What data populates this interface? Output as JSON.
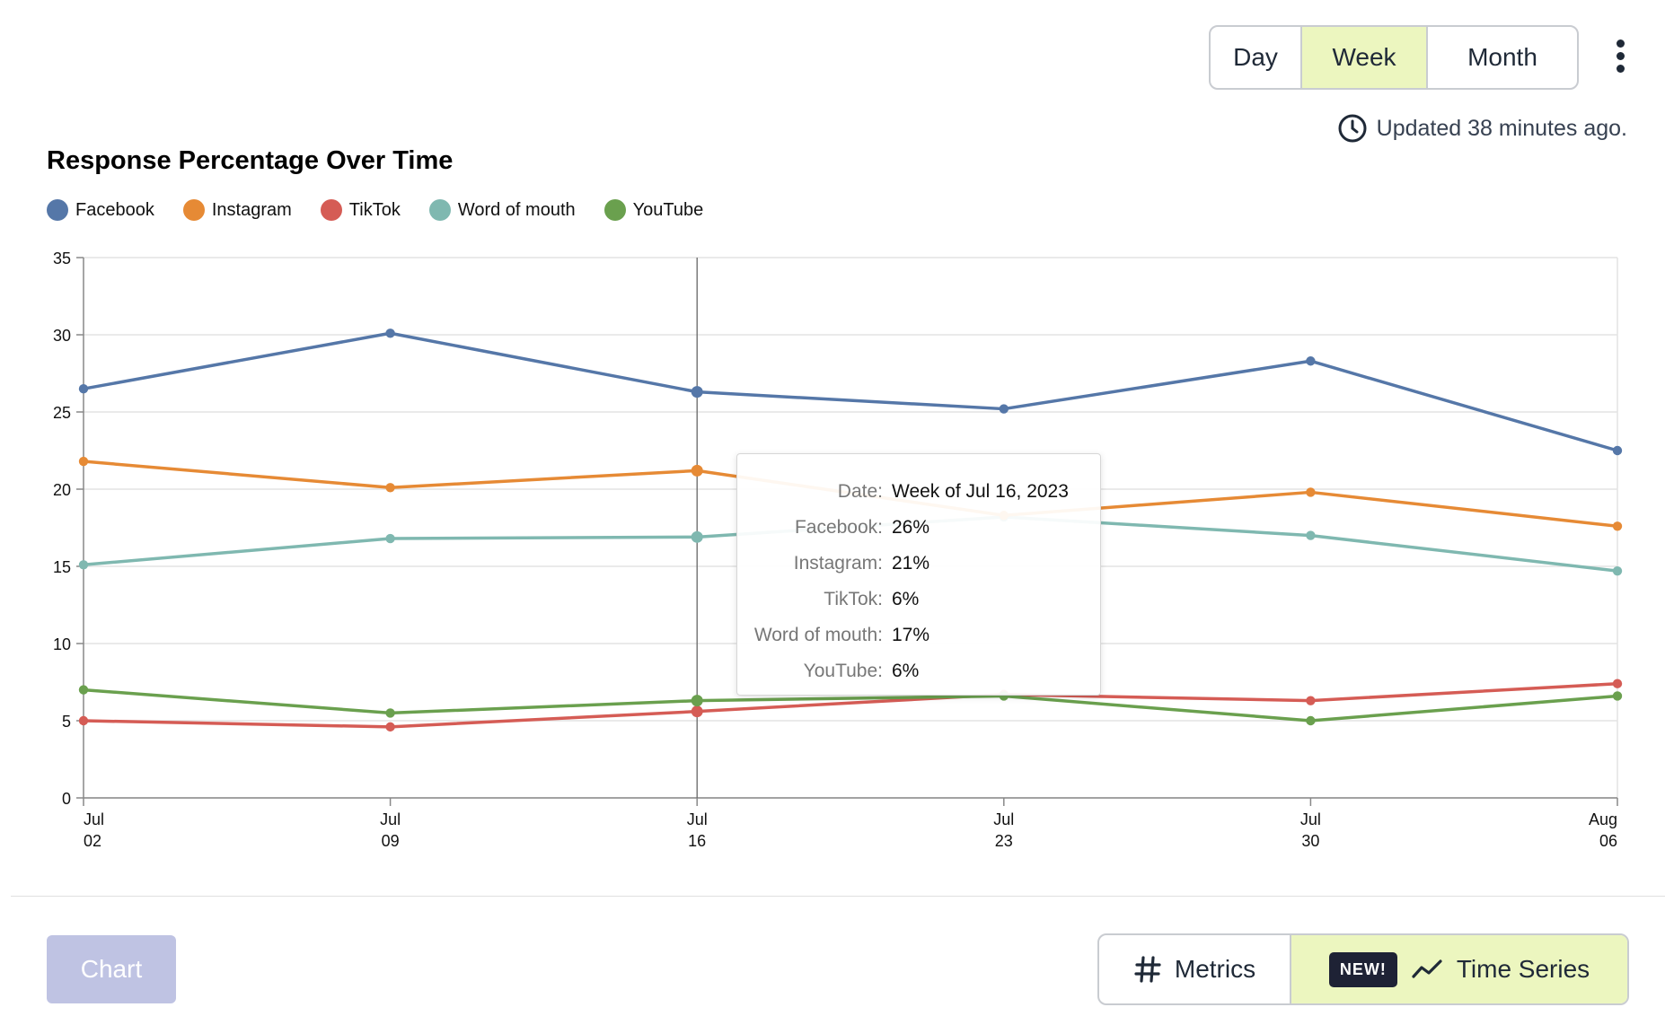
{
  "range": {
    "options": [
      "Day",
      "Week",
      "Month"
    ],
    "selected": "Week"
  },
  "updated_text": "Updated 38 minutes ago.",
  "colors": {
    "Facebook": "#5577a8",
    "Instagram": "#e68a35",
    "TikTok": "#d55c55",
    "Word of mouth": "#7fb8b0",
    "YouTube": "#6aa04e",
    "accent": "#ecf6bf"
  },
  "chart_data": {
    "type": "line",
    "title": "Response Percentage Over Time",
    "xlabel": "",
    "ylabel": "",
    "ylim": [
      0,
      35
    ],
    "yticks": [
      0,
      5,
      10,
      15,
      20,
      25,
      30,
      35
    ],
    "grid": true,
    "legend_position": "top-left",
    "x": [
      "Jul 02",
      "Jul 09",
      "Jul 16",
      "Jul 23",
      "Jul 30",
      "Aug 06"
    ],
    "x_tick_labels": [
      [
        "Jul",
        "02"
      ],
      [
        "Jul",
        "09"
      ],
      [
        "Jul",
        "16"
      ],
      [
        "Jul",
        "23"
      ],
      [
        "Jul",
        "30"
      ],
      [
        "Aug",
        "06"
      ]
    ],
    "series": [
      {
        "name": "Facebook",
        "values": [
          26.5,
          30.1,
          26.3,
          25.2,
          28.3,
          22.5
        ]
      },
      {
        "name": "Instagram",
        "values": [
          21.8,
          20.1,
          21.2,
          18.3,
          19.8,
          17.6
        ]
      },
      {
        "name": "TikTok",
        "values": [
          5.0,
          4.6,
          5.6,
          6.7,
          6.3,
          7.4
        ]
      },
      {
        "name": "Word of mouth",
        "values": [
          15.1,
          16.8,
          16.9,
          18.2,
          17.0,
          14.7
        ]
      },
      {
        "name": "YouTube",
        "values": [
          7.0,
          5.5,
          6.3,
          6.6,
          5.0,
          6.6
        ]
      }
    ],
    "highlight_index": 2
  },
  "tooltip": {
    "rows": [
      {
        "key": "Date:",
        "value": "Week of Jul 16, 2023"
      },
      {
        "key": "Facebook:",
        "value": "26%"
      },
      {
        "key": "Instagram:",
        "value": "21%"
      },
      {
        "key": "TikTok:",
        "value": "6%"
      },
      {
        "key": "Word of mouth:",
        "value": "17%"
      },
      {
        "key": "YouTube:",
        "value": "6%"
      }
    ]
  },
  "footer": {
    "chart_button": "Chart",
    "metrics_label": "Metrics",
    "new_badge": "NEW!",
    "timeseries_label": "Time Series"
  }
}
